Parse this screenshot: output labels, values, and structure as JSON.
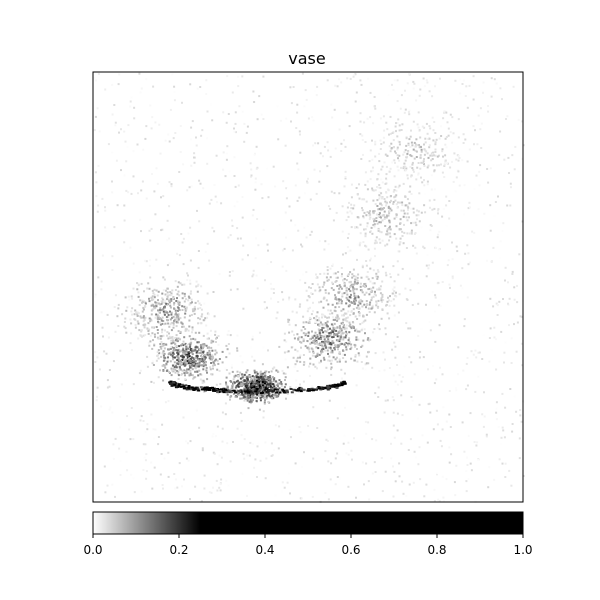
{
  "chart_data": {
    "type": "heatmap",
    "title": "vase",
    "colormap": "gray_r",
    "colorbar": {
      "orientation": "horizontal",
      "range": [
        0.0,
        1.0
      ],
      "gradient_stops": [
        {
          "value": 0.0,
          "color": "#ffffff"
        },
        {
          "value": 0.25,
          "color": "#000000"
        },
        {
          "value": 1.0,
          "color": "#000000"
        }
      ],
      "ticks": [
        {
          "value": 0.0,
          "label": "0.0"
        },
        {
          "value": 0.2,
          "label": "0.2"
        },
        {
          "value": 0.4,
          "label": "0.4"
        },
        {
          "value": 0.6,
          "label": "0.6"
        },
        {
          "value": 0.8,
          "label": "0.8"
        },
        {
          "value": 1.0,
          "label": "1.0"
        }
      ]
    },
    "axes_ticks_visible": false,
    "grid": false,
    "hotspot_regions": [
      {
        "name": "vase-base-arc",
        "cx": 0.38,
        "cy": 0.73,
        "intensity": 1.0
      },
      {
        "name": "vase-lower-left",
        "cx": 0.22,
        "cy": 0.66,
        "intensity": 0.7
      },
      {
        "name": "vase-lower-right",
        "cx": 0.55,
        "cy": 0.62,
        "intensity": 0.55
      },
      {
        "name": "vase-left-side",
        "cx": 0.17,
        "cy": 0.55,
        "intensity": 0.45
      },
      {
        "name": "vase-right-side",
        "cx": 0.6,
        "cy": 0.52,
        "intensity": 0.4
      },
      {
        "name": "background-top-right",
        "cx": 0.75,
        "cy": 0.18,
        "intensity": 0.25
      },
      {
        "name": "background-upper-right",
        "cx": 0.68,
        "cy": 0.33,
        "intensity": 0.3
      }
    ]
  }
}
